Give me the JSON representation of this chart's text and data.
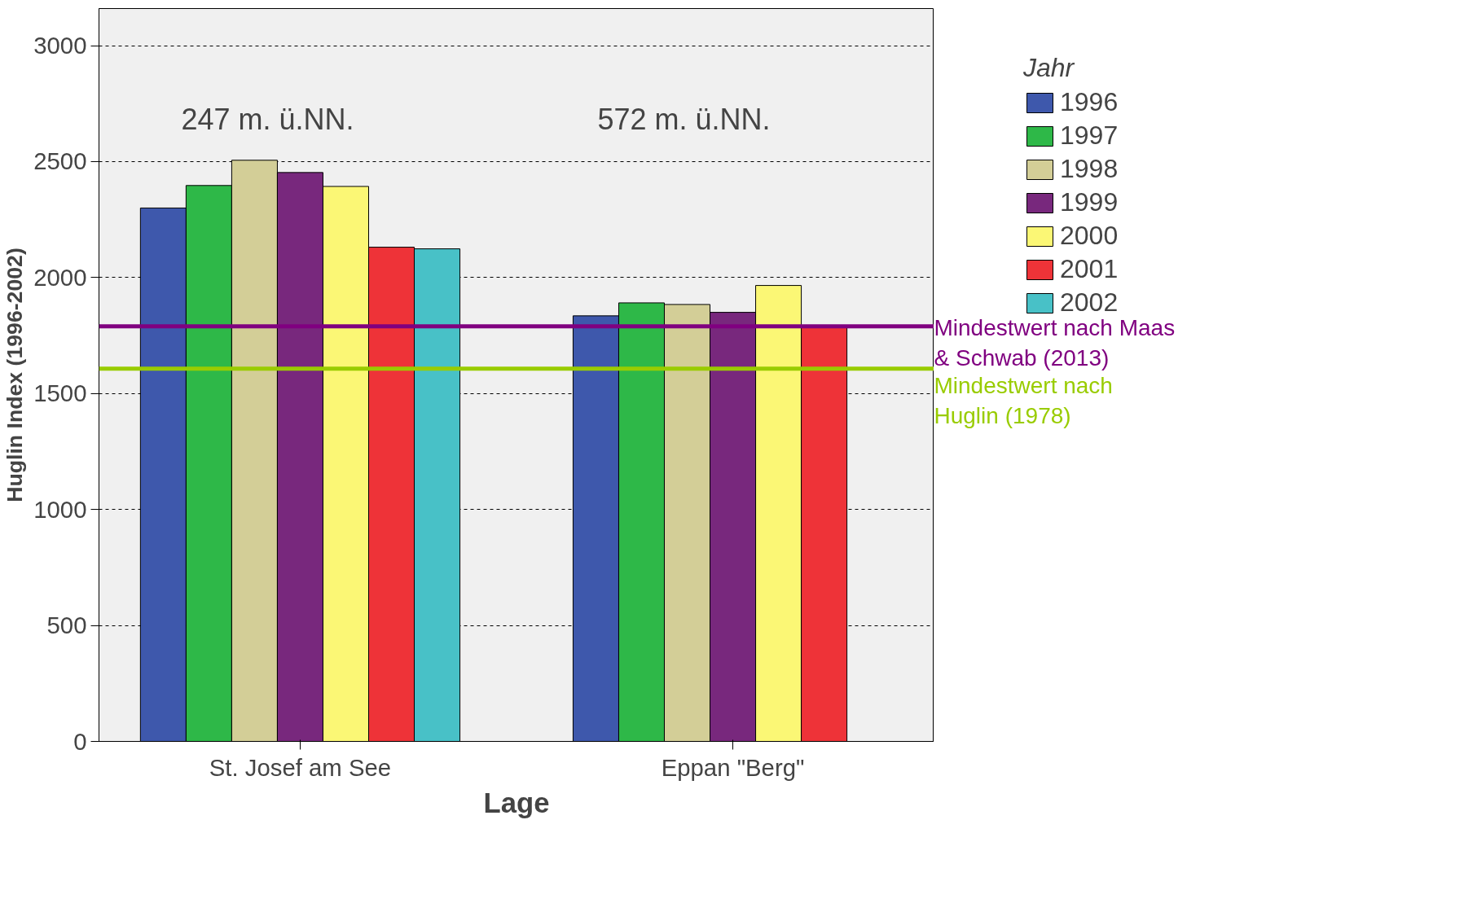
{
  "chart_data": {
    "type": "bar",
    "xlabel": "Lage",
    "ylabel": "Huglin Index (1996-2002)",
    "legend_title": "Jahr",
    "categories": [
      "St. Josef am See",
      "Eppan \"Berg\""
    ],
    "series": [
      {
        "name": "1996",
        "color": "#3e58ac",
        "values": [
          2300,
          1835
        ]
      },
      {
        "name": "1997",
        "color": "#2eb848",
        "values": [
          2397,
          1891
        ]
      },
      {
        "name": "1998",
        "color": "#d3ce97",
        "values": [
          2506,
          1884
        ]
      },
      {
        "name": "1999",
        "color": "#78287d",
        "values": [
          2453,
          1850
        ]
      },
      {
        "name": "2000",
        "color": "#fbf775",
        "values": [
          2393,
          1966
        ]
      },
      {
        "name": "2001",
        "color": "#ee3338",
        "values": [
          2131,
          1794
        ]
      },
      {
        "name": "2002",
        "color": "#48c1c7",
        "values": [
          2124,
          null
        ]
      }
    ],
    "ylim": [
      0,
      3160
    ],
    "yticks": [
      0,
      500,
      1000,
      1500,
      2000,
      2500,
      3000
    ],
    "grid": "y",
    "legend": "top right",
    "ref_lines": [
      {
        "axis": "y",
        "value": 1790,
        "label": "Mindestwert nach Maas & Schwab (2013)",
        "color": "#800080"
      },
      {
        "axis": "y",
        "value": 1607,
        "label": "Mindestwert nach Huglin (1978)",
        "color": "#99cc00"
      }
    ],
    "annotations": [
      "247 m. ü.NN.",
      "572 m. ü.NN."
    ]
  }
}
